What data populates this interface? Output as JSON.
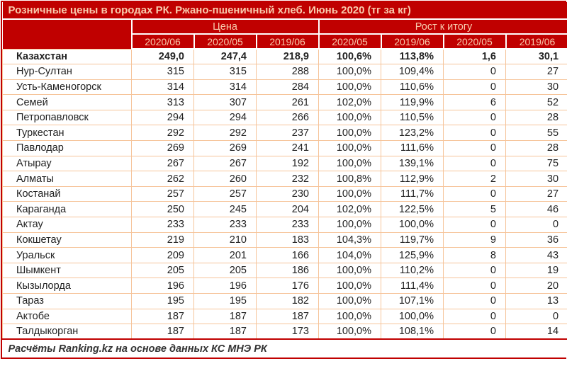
{
  "title": "Розничные цены в городах РК. Ржано-пшеничный хлеб. Июнь 2020 (тг за кг)",
  "footer": "Расчёты Ranking.kz на основе данных КС МНЭ РК",
  "colors": {
    "header_bg": "#C00000",
    "header_text": "#F8CBAD",
    "grid_border": "#F6C49A",
    "outer_border": "#C00000",
    "data_text": "#222222"
  },
  "chart_data": {
    "type": "table",
    "title": "Розничные цены в городах РК. Ржано-пшеничный хлеб. Июнь 2020 (тг за кг)",
    "column_groups": [
      {
        "label": "Цена",
        "span": 3
      },
      {
        "label": "Рост к итогу",
        "span": 4
      }
    ],
    "columns": [
      "2020/06",
      "2020/05",
      "2019/06",
      "2020/05",
      "2019/06",
      "2020/05",
      "2019/06"
    ],
    "rows": [
      {
        "name": "Казахстан",
        "bold": true,
        "values": [
          "249,0",
          "247,4",
          "218,9",
          "100,6%",
          "113,8%",
          "1,6",
          "30,1"
        ]
      },
      {
        "name": "Нур-Султан",
        "values": [
          "315",
          "315",
          "288",
          "100,0%",
          "109,4%",
          "0",
          "27"
        ]
      },
      {
        "name": "Усть-Каменогорск",
        "values": [
          "314",
          "314",
          "284",
          "100,0%",
          "110,6%",
          "0",
          "30"
        ]
      },
      {
        "name": "Семей",
        "values": [
          "313",
          "307",
          "261",
          "102,0%",
          "119,9%",
          "6",
          "52"
        ]
      },
      {
        "name": "Петропавловск",
        "values": [
          "294",
          "294",
          "266",
          "100,0%",
          "110,5%",
          "0",
          "28"
        ]
      },
      {
        "name": "Туркестан",
        "values": [
          "292",
          "292",
          "237",
          "100,0%",
          "123,2%",
          "0",
          "55"
        ]
      },
      {
        "name": "Павлодар",
        "values": [
          "269",
          "269",
          "241",
          "100,0%",
          "111,6%",
          "0",
          "28"
        ]
      },
      {
        "name": "Атырау",
        "values": [
          "267",
          "267",
          "192",
          "100,0%",
          "139,1%",
          "0",
          "75"
        ]
      },
      {
        "name": "Алматы",
        "values": [
          "262",
          "260",
          "232",
          "100,8%",
          "112,9%",
          "2",
          "30"
        ]
      },
      {
        "name": "Костанай",
        "values": [
          "257",
          "257",
          "230",
          "100,0%",
          "111,7%",
          "0",
          "27"
        ]
      },
      {
        "name": "Караганда",
        "values": [
          "250",
          "245",
          "204",
          "102,0%",
          "122,5%",
          "5",
          "46"
        ]
      },
      {
        "name": "Актау",
        "values": [
          "233",
          "233",
          "233",
          "100,0%",
          "100,0%",
          "0",
          "0"
        ]
      },
      {
        "name": "Кокшетау",
        "values": [
          "219",
          "210",
          "183",
          "104,3%",
          "119,7%",
          "9",
          "36"
        ]
      },
      {
        "name": "Уральск",
        "values": [
          "209",
          "201",
          "166",
          "104,0%",
          "125,9%",
          "8",
          "43"
        ]
      },
      {
        "name": "Шымкент",
        "values": [
          "205",
          "205",
          "186",
          "100,0%",
          "110,2%",
          "0",
          "19"
        ]
      },
      {
        "name": "Кызылорда",
        "values": [
          "196",
          "196",
          "176",
          "100,0%",
          "111,4%",
          "0",
          "20"
        ]
      },
      {
        "name": "Тараз",
        "values": [
          "195",
          "195",
          "182",
          "100,0%",
          "107,1%",
          "0",
          "13"
        ]
      },
      {
        "name": "Актобе",
        "values": [
          "187",
          "187",
          "187",
          "100,0%",
          "100,0%",
          "0",
          "0"
        ]
      },
      {
        "name": "Талдыкорган",
        "values": [
          "187",
          "187",
          "173",
          "100,0%",
          "108,1%",
          "0",
          "14"
        ]
      }
    ],
    "source_note": "Расчёты Ranking.kz на основе данных КС МНЭ РК"
  }
}
